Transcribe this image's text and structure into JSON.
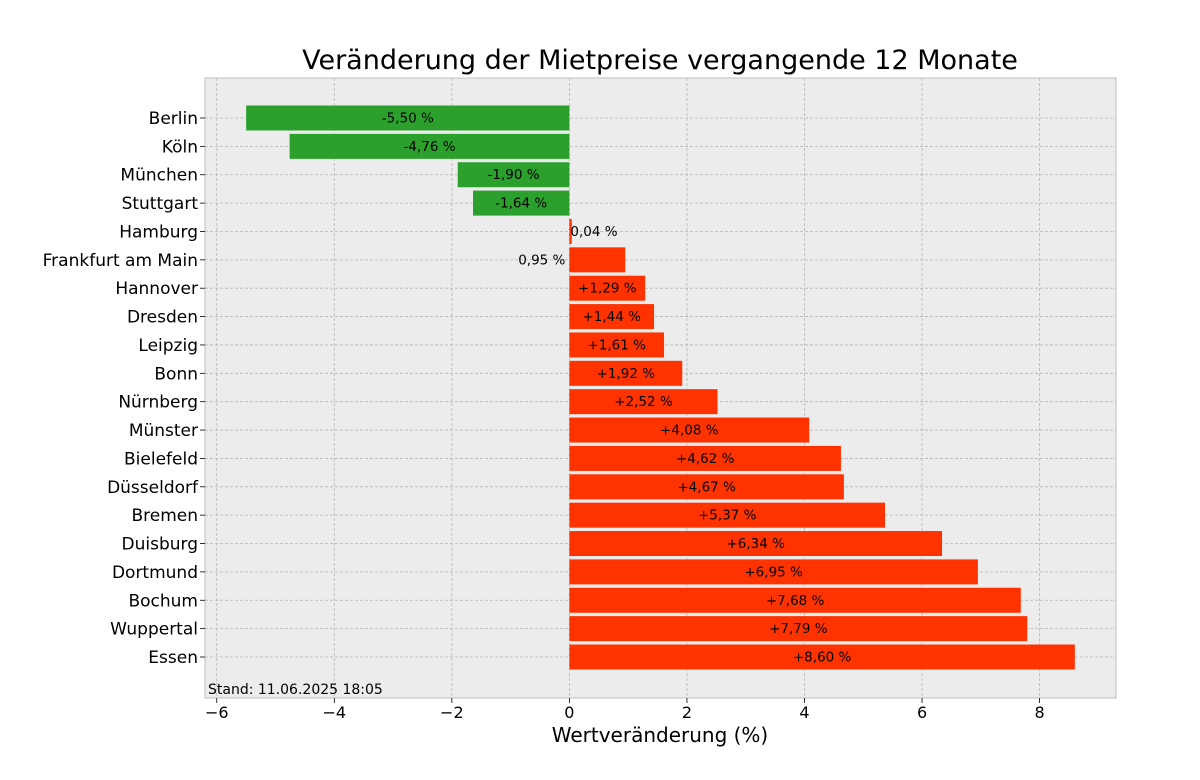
{
  "chart_data": {
    "type": "bar",
    "orientation": "horizontal",
    "title": "Veränderung der Mietpreise vergangende 12 Monate",
    "xlabel": "Wertveränderung (%)",
    "ylabel": "",
    "xlim": [
      -6.2,
      9.3
    ],
    "xticks": [
      -6,
      -4,
      -2,
      0,
      2,
      4,
      6,
      8
    ],
    "xtick_labels": [
      "−6",
      "−4",
      "−2",
      "0",
      "2",
      "4",
      "6",
      "8"
    ],
    "grid": true,
    "footnote": "Stand: 11.06.2025 18:05",
    "colors": {
      "negative": "#2ca02c",
      "positive": "#ff3300",
      "background": "#ececec",
      "grid": "#b5b5b5"
    },
    "categories": [
      "Berlin",
      "Köln",
      "München",
      "Stuttgart",
      "Hamburg",
      "Frankfurt am Main",
      "Hannover",
      "Dresden",
      "Leipzig",
      "Bonn",
      "Nürnberg",
      "Münster",
      "Bielefeld",
      "Düsseldorf",
      "Bremen",
      "Duisburg",
      "Dortmund",
      "Bochum",
      "Wuppertal",
      "Essen"
    ],
    "values": [
      -5.5,
      -4.76,
      -1.9,
      -1.64,
      0.04,
      0.95,
      1.29,
      1.44,
      1.61,
      1.92,
      2.52,
      4.08,
      4.62,
      4.67,
      5.37,
      6.34,
      6.95,
      7.68,
      7.79,
      8.6
    ],
    "data_labels": [
      "-5,50 %",
      "-4,76 %",
      "-1,90 %",
      "-1,64 %",
      "0,04 %",
      "0,95 %",
      "+1,29 %",
      "+1,44 %",
      "+1,61 %",
      "+1,92 %",
      "+2,52 %",
      "+4,08 %",
      "+4,62 %",
      "+4,67 %",
      "+5,37 %",
      "+6,34 %",
      "+6,95 %",
      "+7,68 %",
      "+7,79 %",
      "+8,60 %"
    ]
  }
}
